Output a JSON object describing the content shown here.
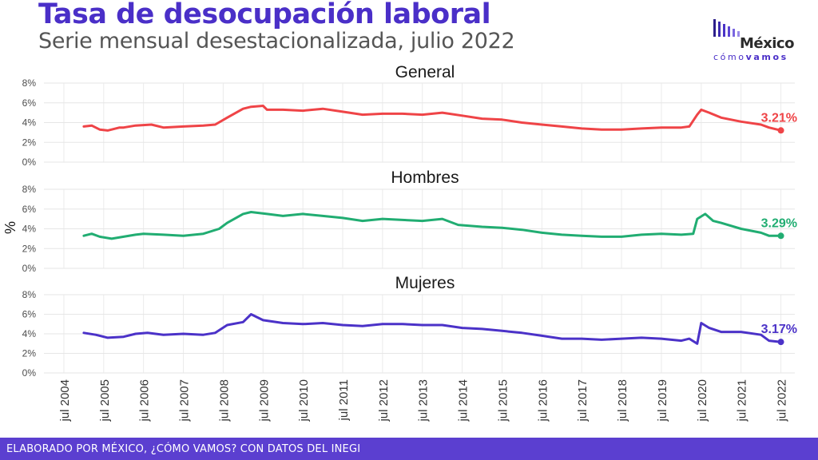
{
  "header": {
    "title": "Tasa de desocupación laboral",
    "subtitle": "Serie mensual desestacionalizada, julio 2022"
  },
  "logo": {
    "name": "México",
    "tagline_a": "cómo",
    "tagline_b": "vamos"
  },
  "footer": {
    "text": "ELABORADO POR MÉXICO, ¿CÓMO VAMOS? CON DATOS DEL INEGI"
  },
  "colors": {
    "General": "#ef4447",
    "Hombres": "#21ad72",
    "Mujeres": "#4b32c8",
    "accent": "#5b3fd0"
  },
  "chart_data": {
    "type": "line",
    "facets": [
      "General",
      "Hombres",
      "Mujeres"
    ],
    "ylabel": "%",
    "ylim": [
      0,
      8
    ],
    "y_ticks": [
      "0%",
      "2%",
      "4%",
      "6%",
      "8%"
    ],
    "x_ticks": [
      "jul 2004",
      "jul 2005",
      "jul 2006",
      "jul 2007",
      "jul 2008",
      "jul 2009",
      "jul 2010",
      "jul 2011",
      "jul 2012",
      "jul 2013",
      "jul 2014",
      "jul 2015",
      "jul 2016",
      "jul 2017",
      "jul 2018",
      "jul 2019",
      "jul 2020",
      "jul 2021",
      "jul 2022"
    ],
    "grid": true,
    "x_unit": "year",
    "series": [
      {
        "name": "General",
        "end_label": "3.21%",
        "points": [
          [
            2005.0,
            3.6
          ],
          [
            2005.2,
            3.7
          ],
          [
            2005.4,
            3.3
          ],
          [
            2005.6,
            3.2
          ],
          [
            2005.9,
            3.5
          ],
          [
            2006.0,
            3.5
          ],
          [
            2006.3,
            3.7
          ],
          [
            2006.7,
            3.8
          ],
          [
            2007.0,
            3.5
          ],
          [
            2007.5,
            3.6
          ],
          [
            2008.0,
            3.7
          ],
          [
            2008.3,
            3.8
          ],
          [
            2008.6,
            4.5
          ],
          [
            2009.0,
            5.4
          ],
          [
            2009.2,
            5.6
          ],
          [
            2009.5,
            5.7
          ],
          [
            2009.6,
            5.3
          ],
          [
            2010.0,
            5.3
          ],
          [
            2010.5,
            5.2
          ],
          [
            2011.0,
            5.4
          ],
          [
            2011.5,
            5.1
          ],
          [
            2012.0,
            4.8
          ],
          [
            2012.5,
            4.9
          ],
          [
            2013.0,
            4.9
          ],
          [
            2013.5,
            4.8
          ],
          [
            2014.0,
            5.0
          ],
          [
            2014.5,
            4.7
          ],
          [
            2015.0,
            4.4
          ],
          [
            2015.5,
            4.3
          ],
          [
            2016.0,
            4.0
          ],
          [
            2016.5,
            3.8
          ],
          [
            2017.0,
            3.6
          ],
          [
            2017.5,
            3.4
          ],
          [
            2018.0,
            3.3
          ],
          [
            2018.5,
            3.3
          ],
          [
            2019.0,
            3.4
          ],
          [
            2019.5,
            3.5
          ],
          [
            2020.0,
            3.5
          ],
          [
            2020.2,
            3.6
          ],
          [
            2020.4,
            4.8
          ],
          [
            2020.5,
            5.3
          ],
          [
            2020.7,
            5.0
          ],
          [
            2021.0,
            4.5
          ],
          [
            2021.5,
            4.1
          ],
          [
            2022.0,
            3.8
          ],
          [
            2022.2,
            3.5
          ],
          [
            2022.5,
            3.21
          ]
        ]
      },
      {
        "name": "Hombres",
        "end_label": "3.29%",
        "points": [
          [
            2005.0,
            3.3
          ],
          [
            2005.2,
            3.5
          ],
          [
            2005.4,
            3.2
          ],
          [
            2005.7,
            3.0
          ],
          [
            2006.0,
            3.2
          ],
          [
            2006.3,
            3.4
          ],
          [
            2006.5,
            3.5
          ],
          [
            2007.0,
            3.4
          ],
          [
            2007.5,
            3.3
          ],
          [
            2008.0,
            3.5
          ],
          [
            2008.4,
            4.0
          ],
          [
            2008.6,
            4.6
          ],
          [
            2009.0,
            5.5
          ],
          [
            2009.2,
            5.7
          ],
          [
            2009.6,
            5.5
          ],
          [
            2010.0,
            5.3
          ],
          [
            2010.5,
            5.5
          ],
          [
            2011.0,
            5.3
          ],
          [
            2011.5,
            5.1
          ],
          [
            2012.0,
            4.8
          ],
          [
            2012.5,
            5.0
          ],
          [
            2013.0,
            4.9
          ],
          [
            2013.5,
            4.8
          ],
          [
            2014.0,
            5.0
          ],
          [
            2014.4,
            4.4
          ],
          [
            2015.0,
            4.2
          ],
          [
            2015.5,
            4.1
          ],
          [
            2016.0,
            3.9
          ],
          [
            2016.5,
            3.6
          ],
          [
            2017.0,
            3.4
          ],
          [
            2017.5,
            3.3
          ],
          [
            2018.0,
            3.2
          ],
          [
            2018.5,
            3.2
          ],
          [
            2019.0,
            3.4
          ],
          [
            2019.5,
            3.5
          ],
          [
            2020.0,
            3.4
          ],
          [
            2020.3,
            3.5
          ],
          [
            2020.4,
            5.0
          ],
          [
            2020.6,
            5.5
          ],
          [
            2020.8,
            4.8
          ],
          [
            2021.0,
            4.6
          ],
          [
            2021.5,
            4.0
          ],
          [
            2022.0,
            3.6
          ],
          [
            2022.2,
            3.3
          ],
          [
            2022.5,
            3.29
          ]
        ]
      },
      {
        "name": "Mujeres",
        "end_label": "3.17%",
        "points": [
          [
            2005.0,
            4.1
          ],
          [
            2005.3,
            3.9
          ],
          [
            2005.6,
            3.6
          ],
          [
            2006.0,
            3.7
          ],
          [
            2006.3,
            4.0
          ],
          [
            2006.6,
            4.1
          ],
          [
            2007.0,
            3.9
          ],
          [
            2007.5,
            4.0
          ],
          [
            2008.0,
            3.9
          ],
          [
            2008.3,
            4.1
          ],
          [
            2008.6,
            4.9
          ],
          [
            2009.0,
            5.2
          ],
          [
            2009.2,
            6.0
          ],
          [
            2009.5,
            5.4
          ],
          [
            2010.0,
            5.1
          ],
          [
            2010.5,
            5.0
          ],
          [
            2011.0,
            5.1
          ],
          [
            2011.5,
            4.9
          ],
          [
            2012.0,
            4.8
          ],
          [
            2012.5,
            5.0
          ],
          [
            2013.0,
            5.0
          ],
          [
            2013.5,
            4.9
          ],
          [
            2014.0,
            4.9
          ],
          [
            2014.5,
            4.6
          ],
          [
            2015.0,
            4.5
          ],
          [
            2015.5,
            4.3
          ],
          [
            2016.0,
            4.1
          ],
          [
            2016.5,
            3.8
          ],
          [
            2017.0,
            3.5
          ],
          [
            2017.5,
            3.5
          ],
          [
            2018.0,
            3.4
          ],
          [
            2018.5,
            3.5
          ],
          [
            2019.0,
            3.6
          ],
          [
            2019.5,
            3.5
          ],
          [
            2020.0,
            3.3
          ],
          [
            2020.2,
            3.5
          ],
          [
            2020.4,
            3.0
          ],
          [
            2020.5,
            5.1
          ],
          [
            2020.7,
            4.6
          ],
          [
            2021.0,
            4.2
          ],
          [
            2021.5,
            4.2
          ],
          [
            2022.0,
            3.9
          ],
          [
            2022.2,
            3.3
          ],
          [
            2022.5,
            3.17
          ]
        ]
      }
    ]
  }
}
